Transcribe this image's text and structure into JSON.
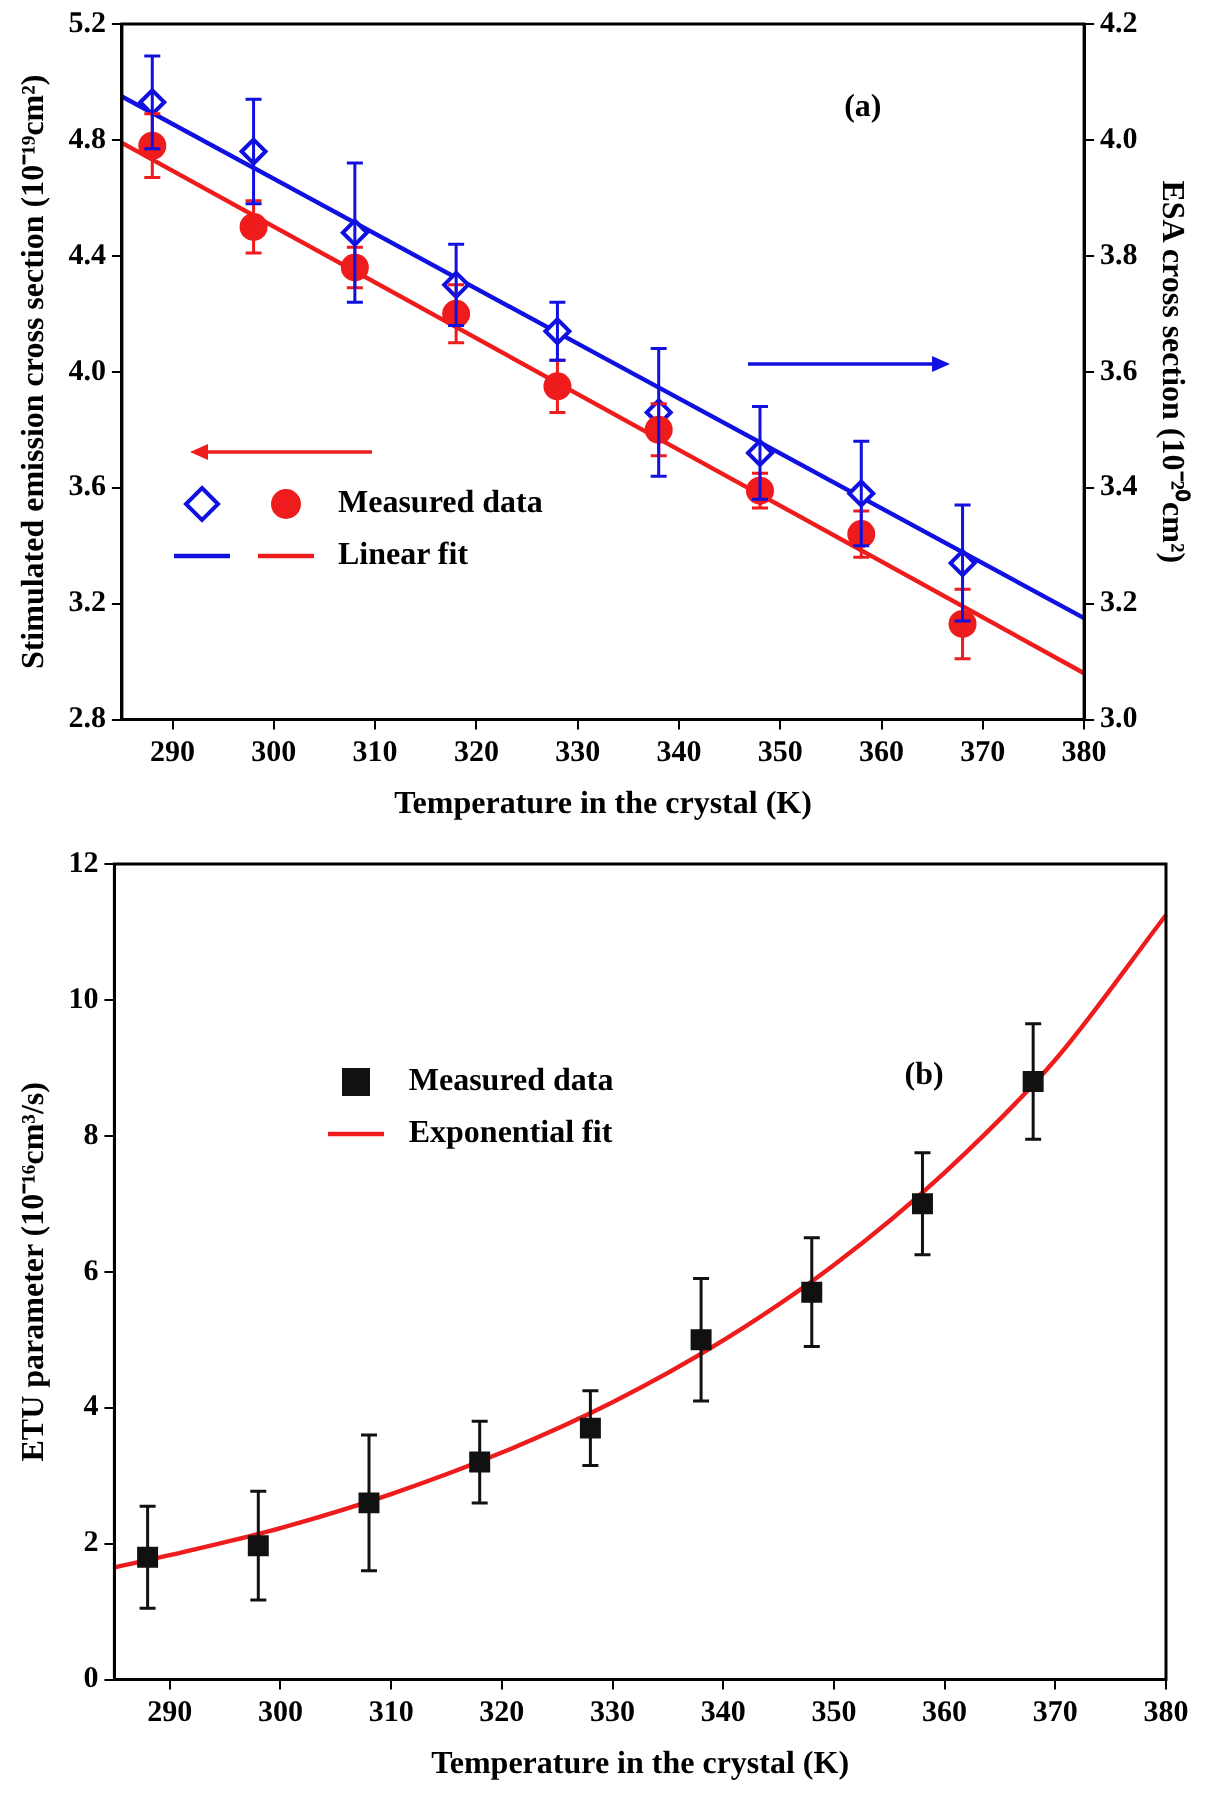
{
  "chart_data": [
    {
      "type": "scatter",
      "xlabel": "Temperature in the crystal (K)",
      "ylabel": "Stimulated emission cross section (10⁻¹⁹cm²)",
      "y2label": "ESA cross section (10⁻²⁰cm²)",
      "xlim": [
        285,
        380
      ],
      "xticks": [
        290,
        300,
        310,
        320,
        330,
        340,
        350,
        360,
        370,
        380
      ],
      "ylim": [
        2.8,
        5.2
      ],
      "yticks": [
        2.8,
        3.2,
        3.6,
        {
          "value": 4,
          "label": "4.0"
        },
        4.4,
        4.8,
        5.2
      ],
      "y2lim": [
        3,
        4.2
      ],
      "y2ticks": [
        {
          "value": 3,
          "label": "3.0"
        },
        3.2,
        3.4,
        3.6,
        3.8,
        {
          "value": 4,
          "label": "4.0"
        },
        4.2
      ],
      "grid": false,
      "legend": "bottom left",
      "annotations": [
        "(a)"
      ],
      "series": [
        {
          "name": "Measured data",
          "marker": "circle",
          "color": "#ee1c1c",
          "x": [
            288,
            298,
            308,
            318,
            328,
            338,
            348,
            358,
            368
          ],
          "values": [
            4.78,
            4.5,
            4.36,
            4.2,
            3.95,
            3.8,
            3.59,
            3.44,
            3.13
          ],
          "errors": [
            0.11,
            0.09,
            0.07,
            0.1,
            0.09,
            0.09,
            0.06,
            0.08,
            0.12
          ]
        },
        {
          "marker": "diamond",
          "axis": "y2",
          "color": "#1010e0",
          "x": [
            288,
            298,
            308,
            318,
            328,
            338,
            348,
            358,
            368
          ],
          "values": [
            4.065,
            3.98,
            3.84,
            3.75,
            3.67,
            3.53,
            3.46,
            3.39,
            3.27
          ],
          "errors": [
            0.08,
            0.09,
            0.12,
            0.07,
            0.05,
            0.11,
            0.08,
            0.09,
            0.1
          ]
        },
        {
          "name": "Linear fit",
          "type": "line",
          "color": "#ee1c1c",
          "x": [
            285,
            380
          ],
          "values": [
            4.79,
            2.96
          ]
        },
        {
          "type": "line",
          "axis": "y2",
          "color": "#1010e0",
          "x": [
            285,
            380
          ],
          "values": [
            4.075,
            3.175
          ]
        }
      ]
    },
    {
      "type": "scatter",
      "xlabel": "Temperature in the crystal (K)",
      "ylabel": "ETU parameter (10⁻¹⁶cm³/s)",
      "xlim": [
        285,
        380
      ],
      "xticks": [
        290,
        300,
        310,
        320,
        330,
        340,
        350,
        360,
        370,
        380
      ],
      "ylim": [
        0,
        12
      ],
      "yticks": [
        0,
        2,
        4,
        6,
        8,
        10,
        12
      ],
      "grid": false,
      "legend": "top left",
      "annotations": [
        "(b)"
      ],
      "series": [
        {
          "name": "Measured data",
          "marker": "square",
          "color": "#111111",
          "x": [
            288,
            298,
            308,
            318,
            328,
            338,
            348,
            358,
            368
          ],
          "values": [
            1.8,
            1.97,
            2.6,
            3.2,
            3.7,
            5.0,
            5.7,
            7.0,
            8.8
          ],
          "errors": [
            0.75,
            0.8,
            1.0,
            0.6,
            0.55,
            0.9,
            0.8,
            0.75,
            0.85
          ]
        },
        {
          "name": "Exponential fit",
          "type": "line",
          "color": "#ee1c1c",
          "x": [
            285,
            290,
            300,
            310,
            320,
            330,
            340,
            350,
            360,
            370,
            380
          ],
          "values": [
            1.65,
            1.83,
            2.23,
            2.73,
            3.34,
            4.08,
            4.99,
            6.1,
            7.46,
            9.12,
            11.25
          ]
        }
      ]
    }
  ]
}
